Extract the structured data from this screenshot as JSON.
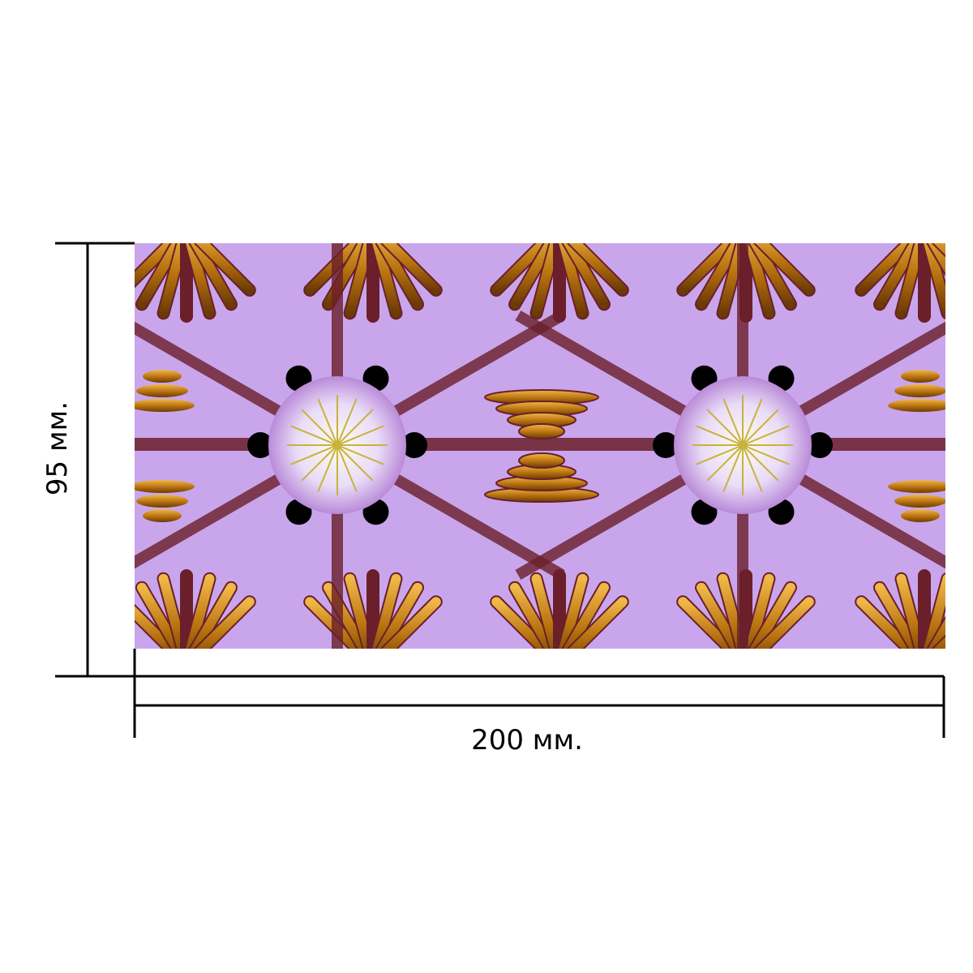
{
  "dimensions": {
    "width_label": "200 мм.",
    "height_label": "95 мм."
  },
  "pattern": {
    "medallion_count": 2,
    "colors": {
      "lavender": "#c9a6ec",
      "lavender_light": "#e6d2fb",
      "violet": "#9f6fd6",
      "gold": "#b8720f",
      "gold_light": "#e7a63a",
      "maroon": "#6b1f2a",
      "black": "#000000",
      "center": "#f3f0e4",
      "center_ray": "#c8b23c"
    }
  },
  "colors": {
    "dimension_line": "#000000",
    "background": "#ffffff"
  }
}
